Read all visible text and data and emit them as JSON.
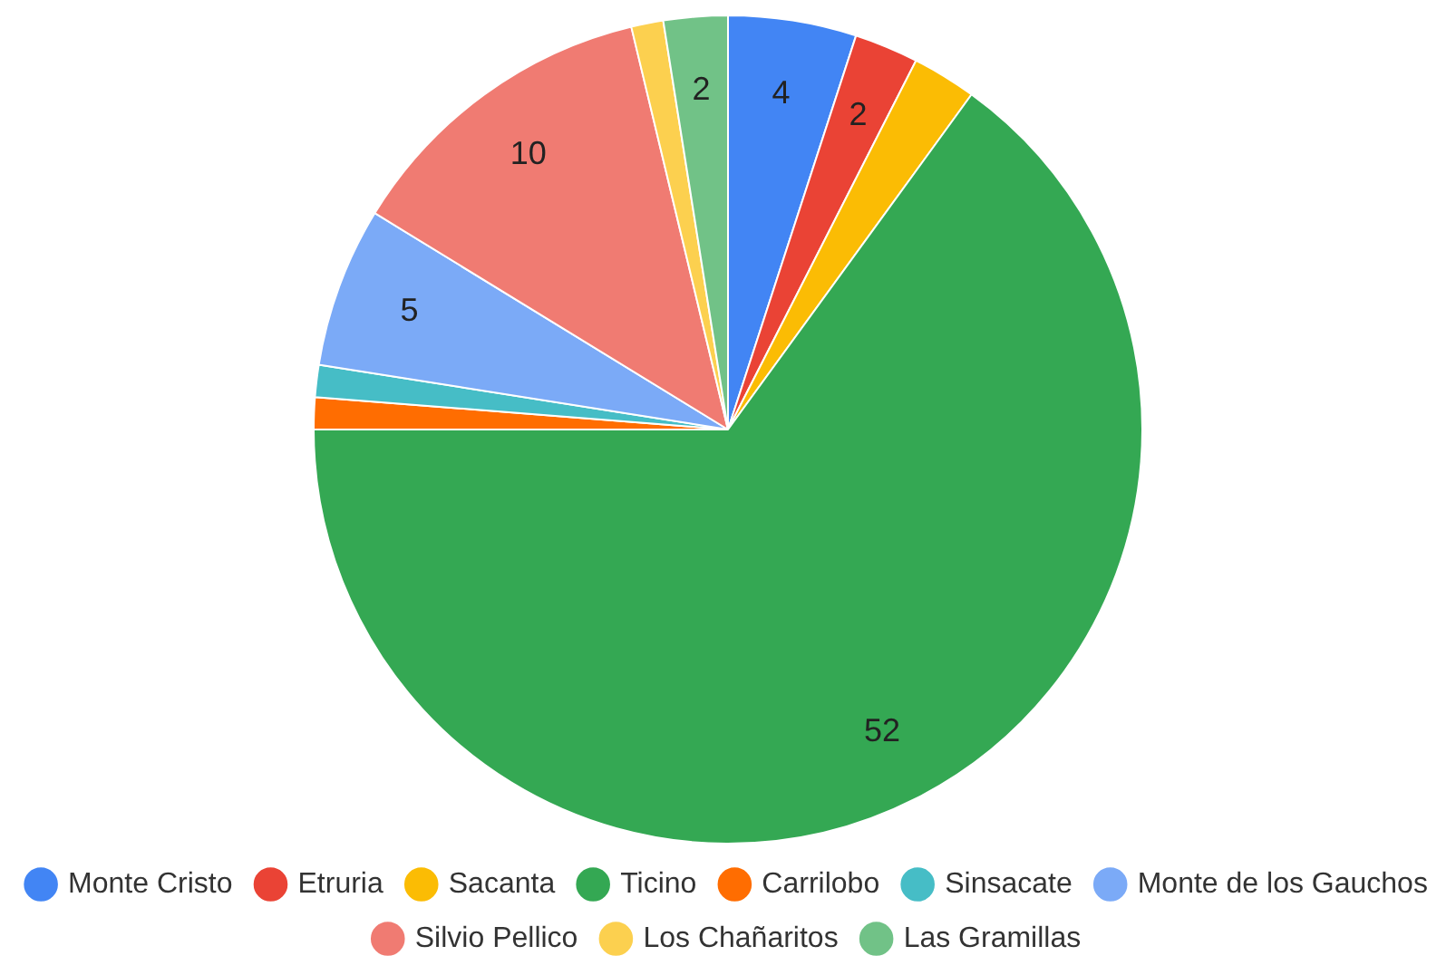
{
  "chart_data": {
    "type": "pie",
    "categories": [
      "Monte Cristo",
      "Etruria",
      "Sacanta",
      "Ticino",
      "Carrilobo",
      "Sinsacate",
      "Monte de los Gauchos",
      "Silvio Pellico",
      "Los Chañaritos",
      "Las Gramillas"
    ],
    "values": [
      4,
      2,
      2,
      52,
      1,
      1,
      5,
      10,
      1,
      2
    ],
    "colors": [
      "#4285f4",
      "#ea4335",
      "#fbbc04",
      "#34a853",
      "#ff6d01",
      "#46bdc6",
      "#7baaf7",
      "#f07b72",
      "#fcd04f",
      "#71c287"
    ],
    "value_labels": [
      "4",
      "2",
      null,
      "52",
      null,
      null,
      "5",
      "10",
      null,
      "2"
    ],
    "legend": "bottom"
  }
}
